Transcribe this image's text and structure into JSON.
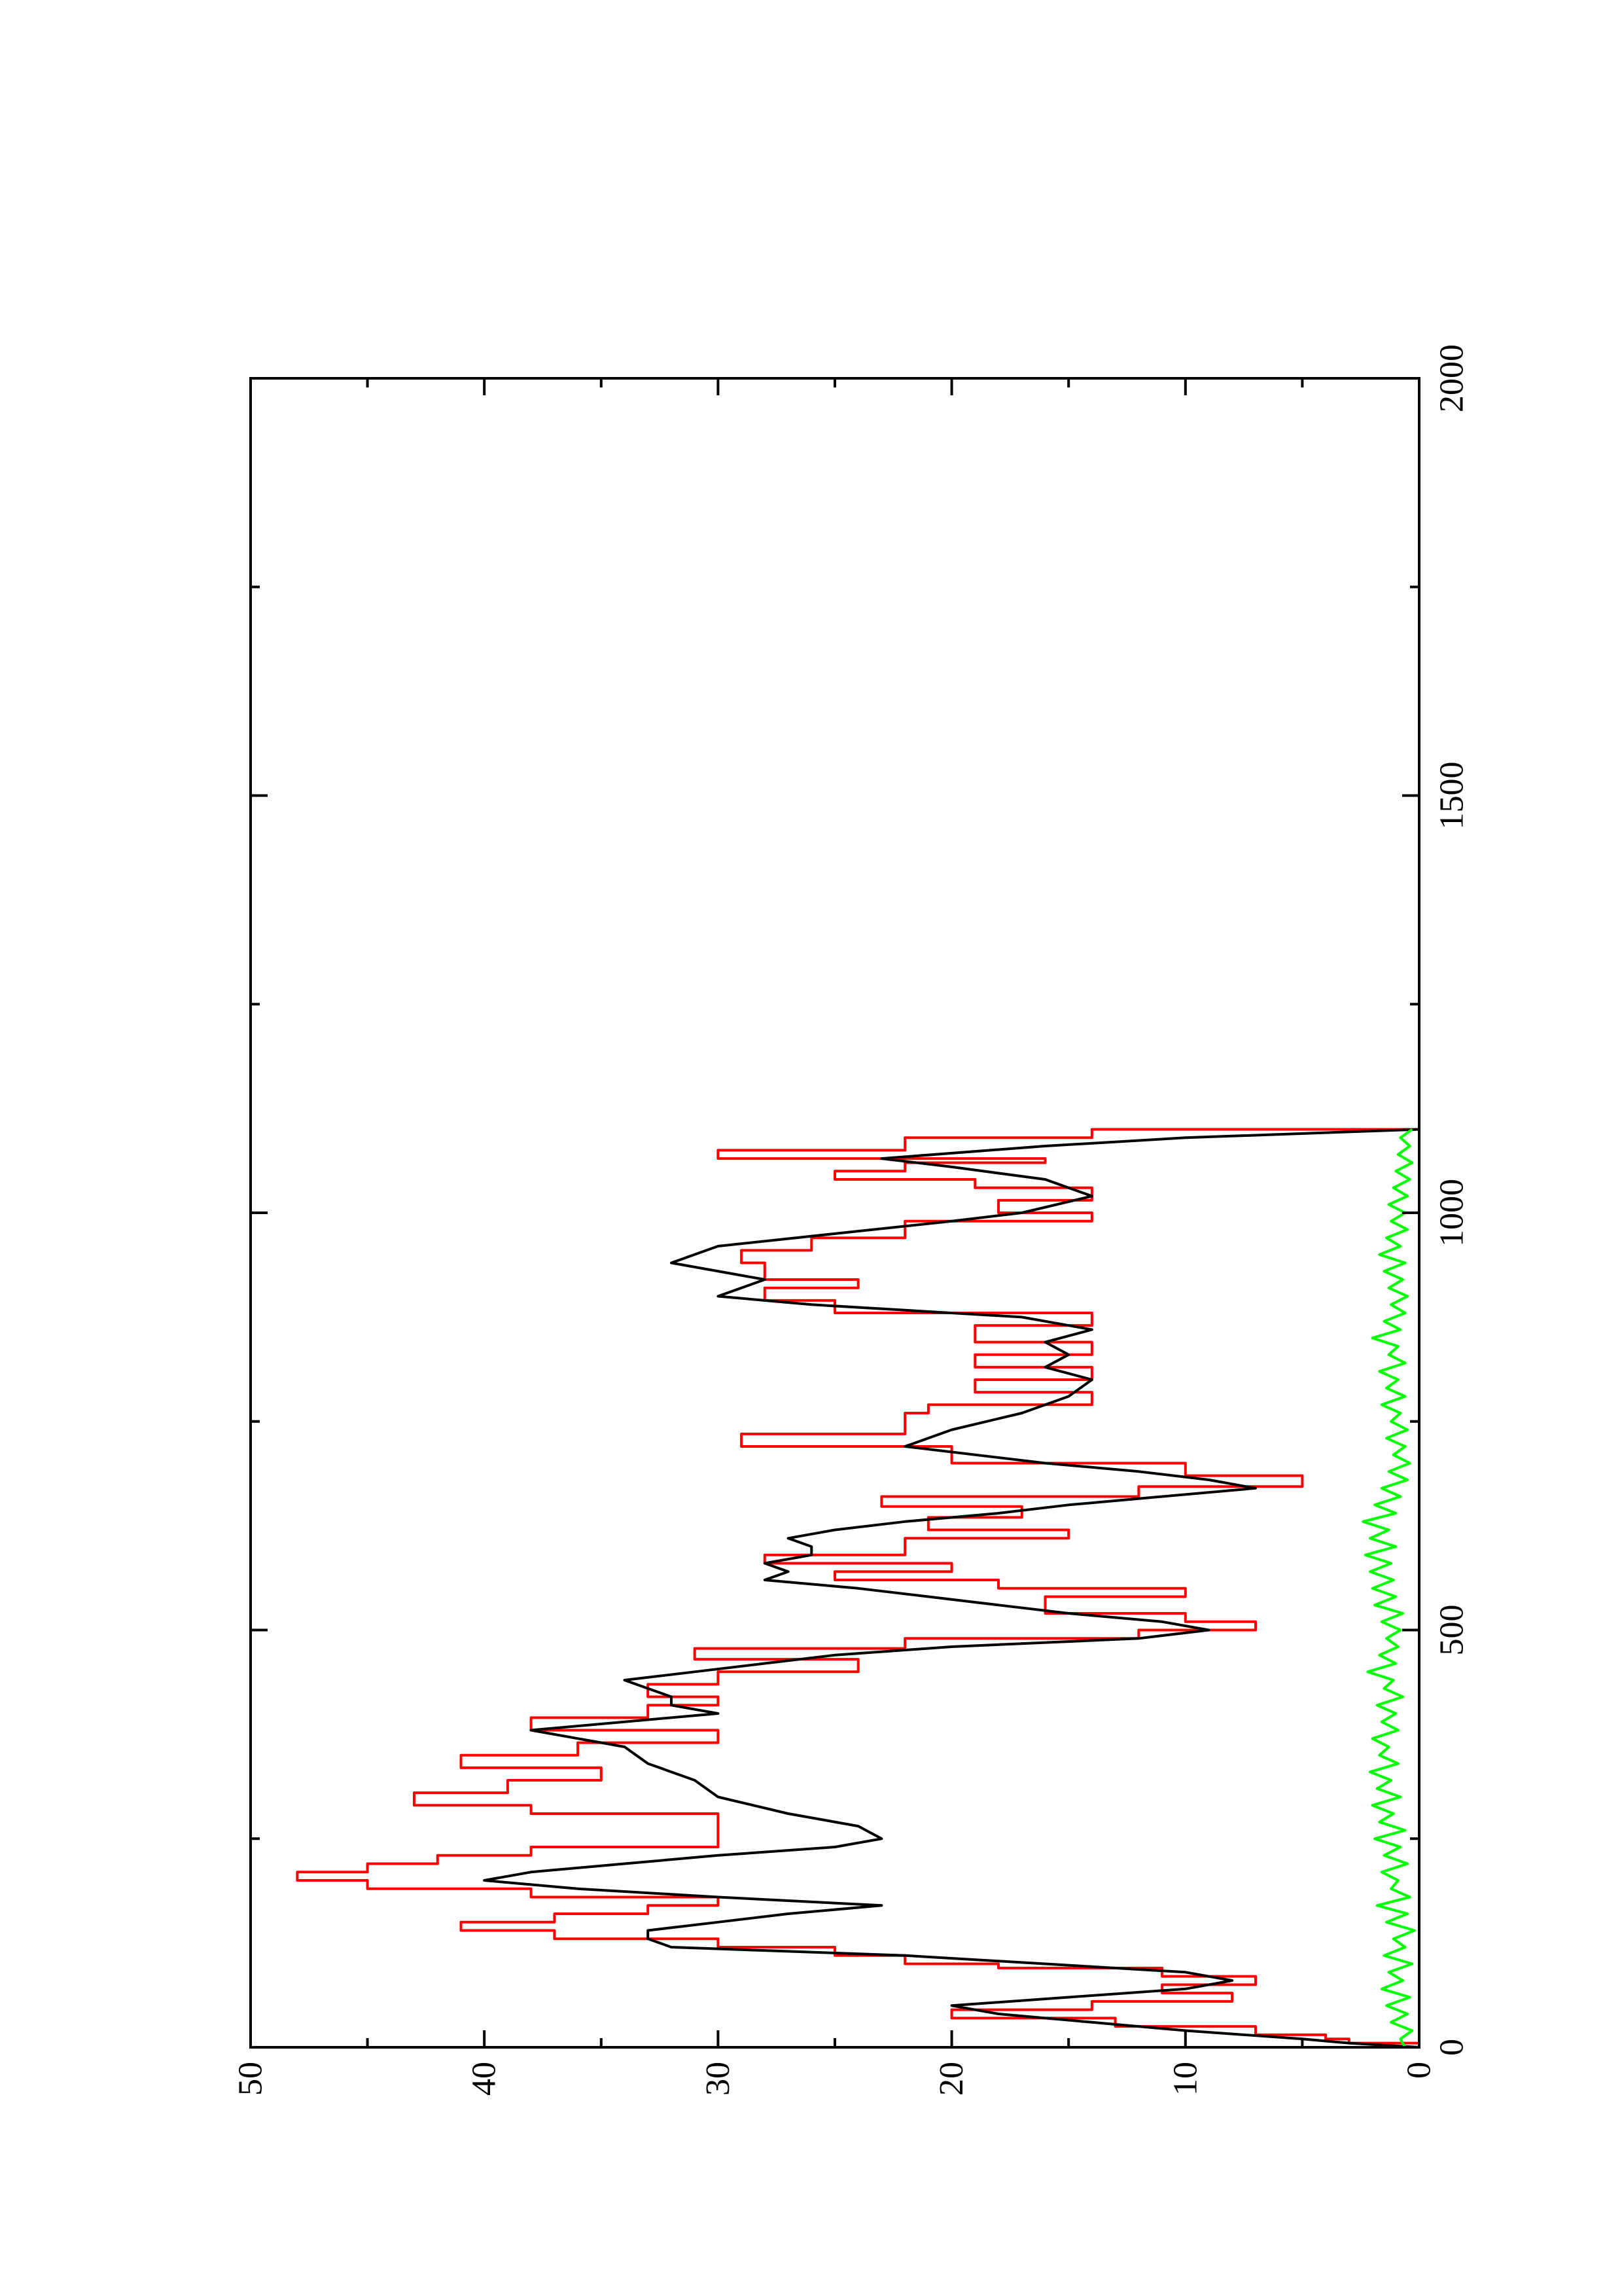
{
  "chart_data": {
    "type": "line",
    "orientation": "rotated-90-ccw",
    "title": "",
    "xlabel": "",
    "ylabel": "",
    "xlim": [
      0,
      2000
    ],
    "ylim": [
      0,
      50
    ],
    "grid": false,
    "legend": "none",
    "x_ticks": [
      0,
      500,
      1000,
      1500,
      2000
    ],
    "x_tick_labels": [
      "0",
      "500",
      "1000",
      "1500",
      "2000"
    ],
    "x_minor_ticks": [
      250,
      750,
      1250,
      1750
    ],
    "y_ticks": [
      0,
      10,
      20,
      30,
      40,
      50
    ],
    "y_tick_labels": [
      "0",
      "10",
      "20",
      "30",
      "40",
      "50"
    ],
    "y_minor_ticks": [
      5,
      15,
      25,
      35,
      45
    ],
    "series": [
      {
        "color": "#ff0000",
        "step": true,
        "points": [
          [
            0,
            0
          ],
          [
            5,
            3
          ],
          [
            10,
            4
          ],
          [
            15,
            7
          ],
          [
            25,
            13
          ],
          [
            35,
            20
          ],
          [
            45,
            14
          ],
          [
            55,
            8
          ],
          [
            65,
            11
          ],
          [
            75,
            7
          ],
          [
            85,
            11
          ],
          [
            95,
            18
          ],
          [
            100,
            22
          ],
          [
            110,
            25
          ],
          [
            120,
            30
          ],
          [
            130,
            37
          ],
          [
            140,
            41
          ],
          [
            150,
            37
          ],
          [
            160,
            33
          ],
          [
            170,
            30
          ],
          [
            180,
            38
          ],
          [
            190,
            45
          ],
          [
            200,
            48
          ],
          [
            210,
            45
          ],
          [
            220,
            42
          ],
          [
            230,
            38
          ],
          [
            240,
            30
          ],
          [
            260,
            30
          ],
          [
            280,
            38
          ],
          [
            290,
            43
          ],
          [
            305,
            39
          ],
          [
            320,
            35
          ],
          [
            335,
            41
          ],
          [
            350,
            36
          ],
          [
            365,
            30
          ],
          [
            380,
            38
          ],
          [
            395,
            33
          ],
          [
            410,
            30
          ],
          [
            420,
            33
          ],
          [
            435,
            30
          ],
          [
            450,
            24
          ],
          [
            465,
            31
          ],
          [
            478,
            22
          ],
          [
            490,
            12
          ],
          [
            500,
            7
          ],
          [
            510,
            10
          ],
          [
            520,
            16
          ],
          [
            530,
            16
          ],
          [
            540,
            10
          ],
          [
            550,
            18
          ],
          [
            560,
            25
          ],
          [
            570,
            20
          ],
          [
            580,
            28
          ],
          [
            590,
            22
          ],
          [
            610,
            15
          ],
          [
            620,
            21
          ],
          [
            635,
            17
          ],
          [
            648,
            23
          ],
          [
            660,
            12
          ],
          [
            672,
            5
          ],
          [
            685,
            10
          ],
          [
            700,
            20
          ],
          [
            720,
            29
          ],
          [
            735,
            22
          ],
          [
            760,
            21
          ],
          [
            770,
            14
          ],
          [
            785,
            19
          ],
          [
            800,
            14
          ],
          [
            815,
            19
          ],
          [
            830,
            14
          ],
          [
            845,
            19
          ],
          [
            865,
            14
          ],
          [
            880,
            25
          ],
          [
            895,
            28
          ],
          [
            910,
            24
          ],
          [
            920,
            28
          ],
          [
            940,
            29
          ],
          [
            955,
            26
          ],
          [
            970,
            22
          ],
          [
            990,
            14
          ],
          [
            1000,
            18
          ],
          [
            1015,
            14
          ],
          [
            1030,
            19
          ],
          [
            1040,
            25
          ],
          [
            1050,
            22
          ],
          [
            1060,
            16
          ],
          [
            1065,
            30
          ],
          [
            1075,
            22
          ],
          [
            1090,
            14
          ],
          [
            1100,
            0
          ]
        ]
      },
      {
        "color": "#000000",
        "step": false,
        "points": [
          [
            0,
            0
          ],
          [
            5,
            3
          ],
          [
            10,
            5
          ],
          [
            20,
            10
          ],
          [
            30,
            14
          ],
          [
            40,
            18
          ],
          [
            50,
            20
          ],
          [
            60,
            15
          ],
          [
            70,
            10
          ],
          [
            80,
            8
          ],
          [
            90,
            10
          ],
          [
            100,
            16
          ],
          [
            110,
            22
          ],
          [
            115,
            27
          ],
          [
            120,
            32
          ],
          [
            130,
            33
          ],
          [
            140,
            33
          ],
          [
            150,
            30
          ],
          [
            160,
            27
          ],
          [
            170,
            23
          ],
          [
            180,
            30
          ],
          [
            190,
            36
          ],
          [
            200,
            40
          ],
          [
            210,
            38
          ],
          [
            220,
            34
          ],
          [
            230,
            30
          ],
          [
            240,
            25
          ],
          [
            250,
            23
          ],
          [
            265,
            24
          ],
          [
            280,
            27
          ],
          [
            300,
            30
          ],
          [
            320,
            31
          ],
          [
            340,
            33
          ],
          [
            360,
            34
          ],
          [
            380,
            38
          ],
          [
            400,
            30
          ],
          [
            410,
            32
          ],
          [
            420,
            32
          ],
          [
            430,
            33
          ],
          [
            440,
            34
          ],
          [
            450,
            31
          ],
          [
            460,
            28
          ],
          [
            470,
            25
          ],
          [
            480,
            20
          ],
          [
            490,
            12
          ],
          [
            500,
            9
          ],
          [
            510,
            11
          ],
          [
            520,
            15
          ],
          [
            530,
            18
          ],
          [
            540,
            21
          ],
          [
            550,
            24
          ],
          [
            560,
            28
          ],
          [
            570,
            27
          ],
          [
            580,
            28
          ],
          [
            590,
            26
          ],
          [
            600,
            26
          ],
          [
            610,
            27
          ],
          [
            620,
            25
          ],
          [
            630,
            22
          ],
          [
            640,
            18
          ],
          [
            650,
            15
          ],
          [
            660,
            11
          ],
          [
            670,
            7
          ],
          [
            680,
            9
          ],
          [
            690,
            12
          ],
          [
            700,
            16
          ],
          [
            720,
            22
          ],
          [
            740,
            20
          ],
          [
            760,
            17
          ],
          [
            780,
            15
          ],
          [
            800,
            14
          ],
          [
            815,
            16
          ],
          [
            830,
            15
          ],
          [
            845,
            16
          ],
          [
            860,
            14
          ],
          [
            875,
            17
          ],
          [
            890,
            26
          ],
          [
            900,
            30
          ],
          [
            920,
            28
          ],
          [
            940,
            32
          ],
          [
            960,
            30
          ],
          [
            975,
            25
          ],
          [
            990,
            20
          ],
          [
            1000,
            17
          ],
          [
            1020,
            14
          ],
          [
            1040,
            16
          ],
          [
            1055,
            20
          ],
          [
            1065,
            23
          ],
          [
            1080,
            16
          ],
          [
            1090,
            10
          ],
          [
            1100,
            0
          ]
        ]
      },
      {
        "color": "#00ff00",
        "step": false,
        "points": [
          [
            0,
            0.6
          ],
          [
            10,
            0.8
          ],
          [
            20,
            0.3
          ],
          [
            30,
            1.2
          ],
          [
            40,
            0.5
          ],
          [
            50,
            1.4
          ],
          [
            60,
            0.4
          ],
          [
            70,
            1.6
          ],
          [
            80,
            0.7
          ],
          [
            90,
            1.3
          ],
          [
            100,
            0.3
          ],
          [
            110,
            1.5
          ],
          [
            120,
            0.6
          ],
          [
            130,
            1.1
          ],
          [
            140,
            0.2
          ],
          [
            150,
            1.4
          ],
          [
            160,
            0.5
          ],
          [
            170,
            1.8
          ],
          [
            180,
            0.4
          ],
          [
            190,
            1.2
          ],
          [
            200,
            0.9
          ],
          [
            210,
            1.6
          ],
          [
            220,
            0.5
          ],
          [
            230,
            1.5
          ],
          [
            240,
            0.8
          ],
          [
            250,
            1.9
          ],
          [
            260,
            0.6
          ],
          [
            270,
            1.7
          ],
          [
            280,
            1.1
          ],
          [
            290,
            2.0
          ],
          [
            300,
            0.8
          ],
          [
            310,
            1.8
          ],
          [
            320,
            1.2
          ],
          [
            330,
            2.1
          ],
          [
            340,
            0.9
          ],
          [
            350,
            1.7
          ],
          [
            360,
            1.3
          ],
          [
            370,
            2.0
          ],
          [
            380,
            0.9
          ],
          [
            390,
            1.6
          ],
          [
            400,
            1.0
          ],
          [
            410,
            1.8
          ],
          [
            420,
            0.7
          ],
          [
            430,
            1.5
          ],
          [
            440,
            1.1
          ],
          [
            450,
            2.2
          ],
          [
            460,
            1.0
          ],
          [
            470,
            1.7
          ],
          [
            480,
            0.9
          ],
          [
            490,
            1.4
          ],
          [
            500,
            0.8
          ],
          [
            510,
            1.6
          ],
          [
            520,
            0.7
          ],
          [
            530,
            1.9
          ],
          [
            540,
            1.0
          ],
          [
            550,
            2.0
          ],
          [
            560,
            1.1
          ],
          [
            570,
            2.1
          ],
          [
            580,
            1.2
          ],
          [
            590,
            2.3
          ],
          [
            600,
            1.0
          ],
          [
            610,
            2.1
          ],
          [
            620,
            1.3
          ],
          [
            630,
            2.4
          ],
          [
            640,
            1.0
          ],
          [
            650,
            1.9
          ],
          [
            660,
            0.8
          ],
          [
            670,
            1.6
          ],
          [
            680,
            0.5
          ],
          [
            690,
            1.3
          ],
          [
            700,
            0.4
          ],
          [
            710,
            1.1
          ],
          [
            720,
            0.6
          ],
          [
            730,
            1.4
          ],
          [
            740,
            0.5
          ],
          [
            750,
            1.2
          ],
          [
            760,
            0.8
          ],
          [
            770,
            1.6
          ],
          [
            780,
            0.6
          ],
          [
            790,
            1.4
          ],
          [
            800,
            0.9
          ],
          [
            810,
            1.7
          ],
          [
            820,
            0.6
          ],
          [
            830,
            1.3
          ],
          [
            840,
            0.9
          ],
          [
            850,
            2.0
          ],
          [
            860,
            0.8
          ],
          [
            870,
            1.5
          ],
          [
            880,
            0.6
          ],
          [
            890,
            1.2
          ],
          [
            900,
            0.5
          ],
          [
            910,
            1.3
          ],
          [
            920,
            0.7
          ],
          [
            930,
            1.5
          ],
          [
            940,
            0.6
          ],
          [
            950,
            1.7
          ],
          [
            960,
            0.8
          ],
          [
            970,
            1.4
          ],
          [
            980,
            0.5
          ],
          [
            990,
            1.2
          ],
          [
            1000,
            0.6
          ],
          [
            1010,
            1.3
          ],
          [
            1020,
            0.5
          ],
          [
            1030,
            1.1
          ],
          [
            1040,
            0.4
          ],
          [
            1050,
            1.0
          ],
          [
            1060,
            0.3
          ],
          [
            1070,
            0.9
          ],
          [
            1080,
            0.4
          ],
          [
            1090,
            0.8
          ],
          [
            1100,
            0.3
          ]
        ]
      }
    ]
  }
}
